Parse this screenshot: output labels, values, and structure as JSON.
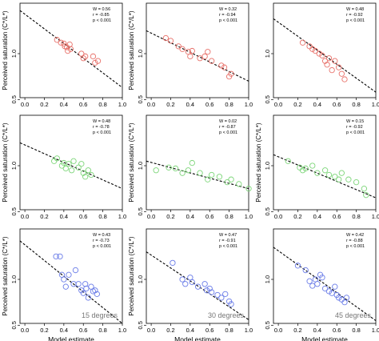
{
  "chart_data": [
    {
      "type": "scatter",
      "row": 0,
      "col": 0,
      "point_color": "#e8716a",
      "xlabel": "",
      "ylabel": "Perceived saturation (C*/L*)",
      "xlim": [
        -0.05,
        1.0
      ],
      "ylim": [
        0.52,
        1.55
      ],
      "xticks": [
        "0.0",
        "0.2",
        "0.4",
        "0.6",
        "0.8",
        "1.0"
      ],
      "yticks": [
        "0.5",
        "1.0"
      ],
      "stats": {
        "w": "W = 0.56",
        "r": "r = -0.85",
        "p": "p < 0.001"
      },
      "fit_line": {
        "x": [
          -0.05,
          1.0
        ],
        "y": [
          1.47,
          0.63
        ]
      },
      "points": [
        [
          0.33,
          1.15
        ],
        [
          0.37,
          1.12
        ],
        [
          0.4,
          1.11
        ],
        [
          0.41,
          1.08
        ],
        [
          0.43,
          1.07
        ],
        [
          0.44,
          1.03
        ],
        [
          0.46,
          1.1
        ],
        [
          0.47,
          1.05
        ],
        [
          0.58,
          1.0
        ],
        [
          0.6,
          0.95
        ],
        [
          0.62,
          0.97
        ],
        [
          0.7,
          0.97
        ],
        [
          0.72,
          0.9
        ],
        [
          0.75,
          0.92
        ]
      ]
    },
    {
      "type": "scatter",
      "row": 0,
      "col": 1,
      "point_color": "#e8716a",
      "xlabel": "",
      "ylabel": "Perceived saturation (C*/L*)",
      "xlim": [
        -0.05,
        1.0
      ],
      "ylim": [
        0.52,
        1.55
      ],
      "xticks": [
        "0.0",
        "0.2",
        "0.4",
        "0.6",
        "0.8",
        "1.0"
      ],
      "yticks": [
        "0.5",
        "1.0"
      ],
      "stats": {
        "w": "W = 0.32",
        "r": "r = -0.94",
        "p": "p < 0.001"
      },
      "fit_line": {
        "x": [
          -0.05,
          1.0
        ],
        "y": [
          1.25,
          0.7
        ]
      },
      "points": [
        [
          0.15,
          1.17
        ],
        [
          0.2,
          1.14
        ],
        [
          0.28,
          1.08
        ],
        [
          0.32,
          1.05
        ],
        [
          0.38,
          1.02
        ],
        [
          0.4,
          0.97
        ],
        [
          0.42,
          1.03
        ],
        [
          0.5,
          0.95
        ],
        [
          0.55,
          0.97
        ],
        [
          0.58,
          1.02
        ],
        [
          0.62,
          0.92
        ],
        [
          0.72,
          0.87
        ],
        [
          0.75,
          0.85
        ],
        [
          0.8,
          0.75
        ],
        [
          0.82,
          0.78
        ]
      ]
    },
    {
      "type": "scatter",
      "row": 0,
      "col": 2,
      "point_color": "#e8716a",
      "xlabel": "",
      "ylabel": "",
      "xlim": [
        -0.05,
        1.0
      ],
      "ylim": [
        0.52,
        1.55
      ],
      "xticks": [
        "0.0",
        "0.2",
        "0.4",
        "0.6",
        "0.8",
        "1.0"
      ],
      "yticks": [
        "0.5",
        "1.0"
      ],
      "stats": {
        "w": "W = 0.48",
        "r": "r = -0.92",
        "p": "p < 0.001"
      },
      "fit_line": {
        "x": [
          -0.05,
          1.0
        ],
        "y": [
          1.38,
          0.58
        ]
      },
      "points": [
        [
          0.25,
          1.12
        ],
        [
          0.32,
          1.08
        ],
        [
          0.35,
          1.05
        ],
        [
          0.38,
          1.03
        ],
        [
          0.42,
          1.0
        ],
        [
          0.45,
          0.98
        ],
        [
          0.48,
          0.92
        ],
        [
          0.5,
          0.88
        ],
        [
          0.52,
          0.95
        ],
        [
          0.55,
          0.82
        ],
        [
          0.58,
          0.92
        ],
        [
          0.62,
          0.85
        ],
        [
          0.65,
          0.78
        ],
        [
          0.68,
          0.72
        ]
      ]
    },
    {
      "type": "scatter",
      "row": 1,
      "col": 0,
      "point_color": "#7ed67a",
      "xlabel": "",
      "ylabel": "Perceived saturation (C*/L*)",
      "xlim": [
        -0.05,
        1.0
      ],
      "ylim": [
        0.52,
        1.55
      ],
      "xticks": [
        "0.0",
        "0.2",
        "0.4",
        "0.6",
        "0.8",
        "1.0"
      ],
      "yticks": [
        "0.5",
        "1.0"
      ],
      "stats": {
        "w": "W = 0.48",
        "r": "r = -0.78",
        "p": "p < 0.001"
      },
      "fit_line": {
        "x": [
          -0.05,
          1.0
        ],
        "y": [
          1.25,
          0.75
        ]
      },
      "points": [
        [
          0.3,
          1.05
        ],
        [
          0.33,
          1.08
        ],
        [
          0.38,
          1.0
        ],
        [
          0.4,
          1.03
        ],
        [
          0.42,
          0.97
        ],
        [
          0.45,
          1.02
        ],
        [
          0.48,
          0.95
        ],
        [
          0.5,
          1.05
        ],
        [
          0.55,
          0.98
        ],
        [
          0.58,
          1.02
        ],
        [
          0.6,
          0.92
        ],
        [
          0.62,
          0.88
        ],
        [
          0.65,
          0.95
        ],
        [
          0.68,
          0.9
        ]
      ]
    },
    {
      "type": "scatter",
      "row": 1,
      "col": 1,
      "point_color": "#7ed67a",
      "xlabel": "",
      "ylabel": "Perceived saturation (C*/L*)",
      "xlim": [
        -0.05,
        1.0
      ],
      "ylim": [
        0.52,
        1.55
      ],
      "xticks": [
        "0.0",
        "0.2",
        "0.4",
        "0.6",
        "0.8",
        "1.0"
      ],
      "yticks": [
        "0.5",
        "1.0"
      ],
      "stats": {
        "w": "W = 0.02",
        "r": "r = -0.87",
        "p": "p < 0.001"
      },
      "fit_line": {
        "x": [
          -0.05,
          1.0
        ],
        "y": [
          1.05,
          0.75
        ]
      },
      "points": [
        [
          0.05,
          0.95
        ],
        [
          0.18,
          0.98
        ],
        [
          0.25,
          0.97
        ],
        [
          0.32,
          0.92
        ],
        [
          0.38,
          0.95
        ],
        [
          0.42,
          1.03
        ],
        [
          0.5,
          0.92
        ],
        [
          0.58,
          0.85
        ],
        [
          0.62,
          0.9
        ],
        [
          0.7,
          0.88
        ],
        [
          0.78,
          0.82
        ],
        [
          0.82,
          0.85
        ],
        [
          0.9,
          0.8
        ],
        [
          1.0,
          0.75
        ]
      ]
    },
    {
      "type": "scatter",
      "row": 1,
      "col": 2,
      "point_color": "#7ed67a",
      "xlabel": "",
      "ylabel": "Perceived saturation (C*/L*)",
      "xlim": [
        -0.05,
        1.0
      ],
      "ylim": [
        0.52,
        1.55
      ],
      "xticks": [
        "0.0",
        "0.2",
        "0.4",
        "0.6",
        "0.8",
        "1.0"
      ],
      "yticks": [
        "0.5",
        "1.0"
      ],
      "stats": {
        "w": "W = 0.15",
        "r": "r = -0.92",
        "p": "p < 0.001"
      },
      "fit_line": {
        "x": [
          -0.05,
          1.0
        ],
        "y": [
          1.12,
          0.65
        ]
      },
      "points": [
        [
          0.1,
          1.05
        ],
        [
          0.22,
          0.98
        ],
        [
          0.25,
          0.95
        ],
        [
          0.28,
          0.97
        ],
        [
          0.35,
          1.0
        ],
        [
          0.4,
          0.92
        ],
        [
          0.48,
          0.95
        ],
        [
          0.52,
          0.9
        ],
        [
          0.58,
          0.88
        ],
        [
          0.62,
          0.85
        ],
        [
          0.65,
          0.92
        ],
        [
          0.72,
          0.85
        ],
        [
          0.8,
          0.82
        ],
        [
          0.88,
          0.75
        ],
        [
          0.9,
          0.68
        ]
      ]
    },
    {
      "type": "scatter",
      "row": 2,
      "col": 0,
      "point_color": "#6b7de8",
      "xlabel": "Model estimate",
      "ylabel": "Perceived saturation (C*/L*)",
      "xlim": [
        -0.05,
        1.0
      ],
      "ylim": [
        0.52,
        1.55
      ],
      "xticks": [
        "0.0",
        "0.2",
        "0.4",
        "0.6",
        "0.8",
        "1.0"
      ],
      "yticks": [
        "0.5",
        "1.0"
      ],
      "stats": {
        "w": "W = 0.43",
        "r": "r = -0.73",
        "p": "p < 0.001"
      },
      "fit_line": {
        "x": [
          -0.05,
          1.0
        ],
        "y": [
          1.42,
          0.52
        ]
      },
      "points": [
        [
          0.32,
          1.25
        ],
        [
          0.36,
          1.25
        ],
        [
          0.38,
          1.05
        ],
        [
          0.4,
          1.0
        ],
        [
          0.42,
          0.92
        ],
        [
          0.45,
          1.05
        ],
        [
          0.5,
          0.95
        ],
        [
          0.52,
          1.1
        ],
        [
          0.55,
          0.95
        ],
        [
          0.58,
          0.88
        ],
        [
          0.6,
          0.85
        ],
        [
          0.62,
          0.95
        ],
        [
          0.63,
          0.9
        ],
        [
          0.65,
          0.8
        ],
        [
          0.68,
          0.92
        ],
        [
          0.7,
          0.87
        ],
        [
          0.72,
          0.88
        ],
        [
          0.74,
          0.84
        ]
      ]
    },
    {
      "type": "scatter",
      "row": 2,
      "col": 1,
      "point_color": "#6b7de8",
      "xlabel": "Model estimate",
      "ylabel": "Perceived saturation (C*/L*)",
      "xlim": [
        -0.05,
        1.0
      ],
      "ylim": [
        0.52,
        1.55
      ],
      "xticks": [
        "0.0",
        "0.2",
        "0.4",
        "0.6",
        "0.8",
        "1.0"
      ],
      "yticks": [
        "0.5",
        "1.0"
      ],
      "stats": {
        "w": "W = 0.47",
        "r": "r = -0.91",
        "p": "p < 0.001"
      },
      "fit_line": {
        "x": [
          -0.05,
          1.0
        ],
        "y": [
          1.3,
          0.56
        ]
      },
      "points": [
        [
          0.22,
          1.18
        ],
        [
          0.32,
          1.0
        ],
        [
          0.35,
          0.95
        ],
        [
          0.4,
          1.02
        ],
        [
          0.42,
          0.97
        ],
        [
          0.48,
          0.92
        ],
        [
          0.55,
          0.95
        ],
        [
          0.57,
          0.88
        ],
        [
          0.6,
          0.9
        ],
        [
          0.62,
          0.86
        ],
        [
          0.68,
          0.83
        ],
        [
          0.72,
          0.8
        ],
        [
          0.76,
          0.84
        ],
        [
          0.8,
          0.76
        ],
        [
          0.82,
          0.73
        ]
      ]
    },
    {
      "type": "scatter",
      "row": 2,
      "col": 2,
      "point_color": "#6b7de8",
      "xlabel": "Model estimate",
      "ylabel": "",
      "xlim": [
        -0.05,
        1.0
      ],
      "ylim": [
        0.52,
        1.55
      ],
      "xticks": [
        "0.0",
        "0.2",
        "0.4",
        "0.6",
        "0.8",
        "1.0"
      ],
      "yticks": [
        "0.5",
        "1.0"
      ],
      "stats": {
        "w": "W = 0.42",
        "r": "r = -0.88",
        "p": "p < 0.001"
      },
      "fit_line": {
        "x": [
          -0.05,
          1.0
        ],
        "y": [
          1.35,
          0.55
        ]
      },
      "points": [
        [
          0.2,
          1.15
        ],
        [
          0.28,
          1.1
        ],
        [
          0.32,
          0.98
        ],
        [
          0.35,
          0.93
        ],
        [
          0.38,
          1.0
        ],
        [
          0.4,
          0.95
        ],
        [
          0.43,
          1.05
        ],
        [
          0.45,
          1.02
        ],
        [
          0.48,
          0.9
        ],
        [
          0.52,
          0.87
        ],
        [
          0.55,
          0.85
        ],
        [
          0.58,
          0.92
        ],
        [
          0.6,
          0.83
        ],
        [
          0.62,
          0.8
        ],
        [
          0.65,
          0.78
        ],
        [
          0.68,
          0.75
        ],
        [
          0.7,
          0.8
        ]
      ]
    }
  ],
  "angle_labels": [
    "15 degrees",
    "30 degrees",
    "45 degrees"
  ]
}
